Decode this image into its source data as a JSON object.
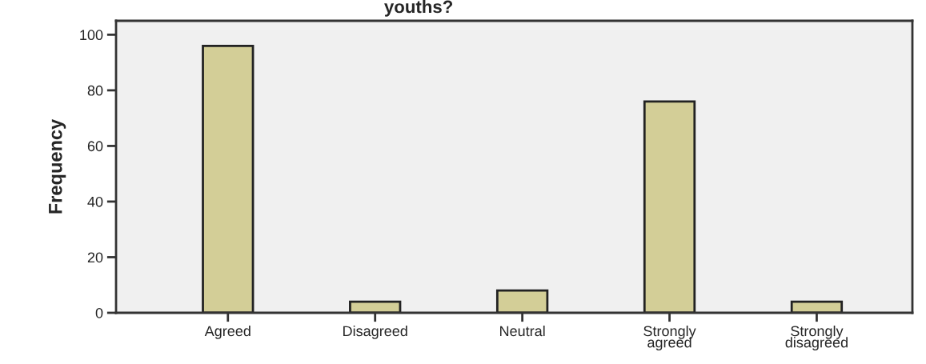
{
  "chart_data": {
    "type": "bar",
    "title": "youths?",
    "ylabel": "Frequency",
    "categories": [
      "Agreed",
      "Disagreed",
      "Neutral",
      "Strongly\nagreed",
      "Strongly\ndisagreed"
    ],
    "values": [
      96,
      4,
      8,
      76,
      4
    ],
    "color": "#d3ce97",
    "ylim": [
      0,
      105
    ],
    "yticks": [
      0,
      20,
      40,
      60,
      80,
      100
    ],
    "grid": false
  }
}
